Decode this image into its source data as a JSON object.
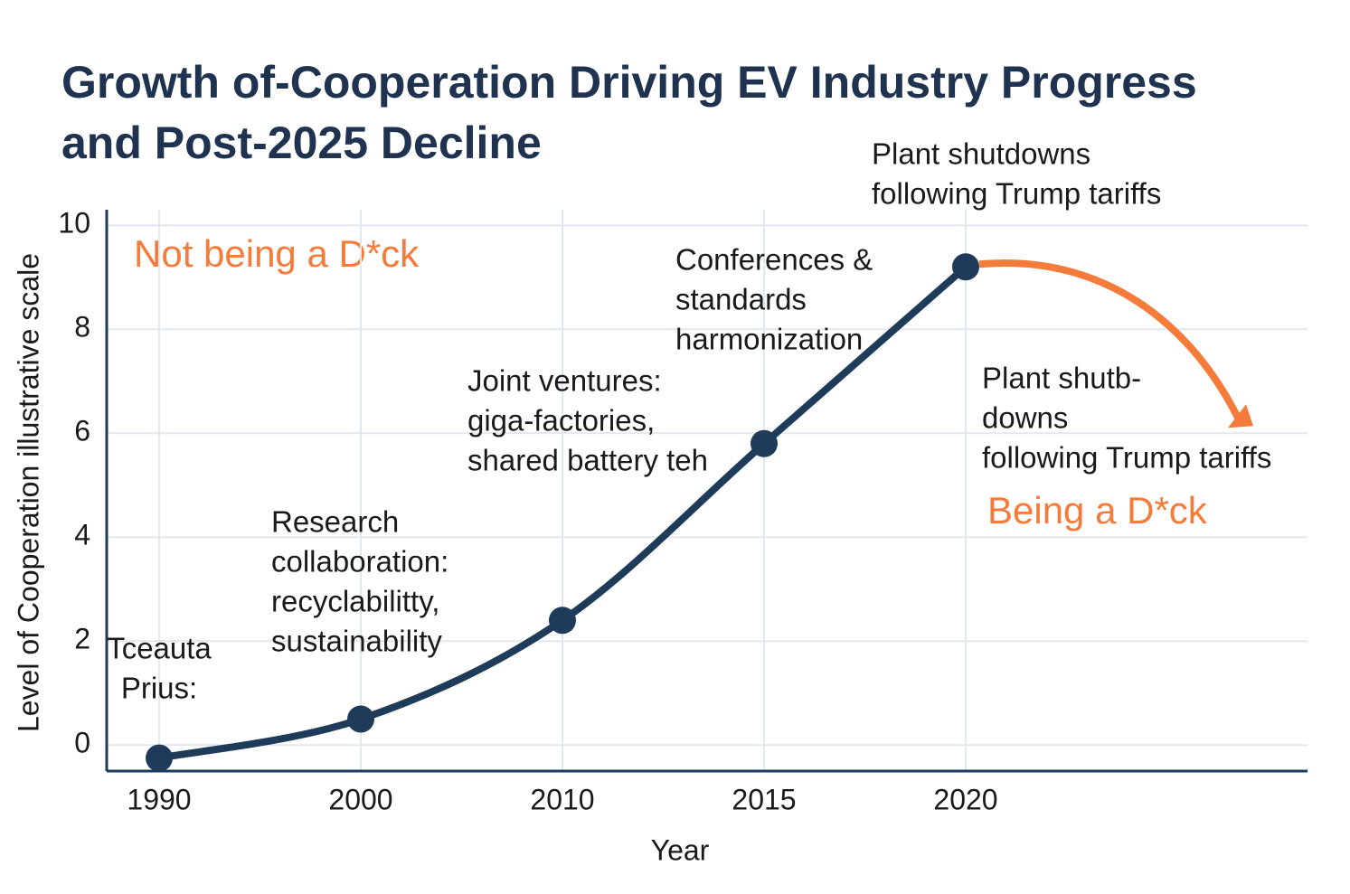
{
  "chart_data": {
    "type": "line",
    "title": [
      "Growth of-Cooperation Driving EV Industry Progress",
      "and Post-2025 Decline"
    ],
    "x_label": "Year",
    "y_label": "Level of Cooperation illustrative scale",
    "categories": [
      "1990",
      "2000",
      "2010",
      "2015",
      "2020"
    ],
    "series": [
      {
        "name": "Cooperation",
        "color": "#1f3b5a",
        "values": [
          -0.25,
          0.5,
          2.4,
          5.8,
          9.2
        ]
      }
    ],
    "decline_color": "#f47b3a",
    "ylim": [
      -0.5,
      10.3
    ],
    "yticks": [
      0,
      2,
      4,
      6,
      8,
      10
    ],
    "grid": true,
    "annotations": [
      {
        "lines": [
          "Tceauta",
          "Prius:"
        ]
      },
      {
        "lines": [
          "Research",
          "collaboration:",
          "recyclabilitty,",
          "sustainability"
        ]
      },
      {
        "lines": [
          "Joint ventures:",
          "giga-factories,",
          "shared battery teh"
        ]
      },
      {
        "lines": [
          "Conferences &",
          "standards",
          "harmonization"
        ]
      },
      {
        "lines": [
          "Plant shutdowns",
          "following Trump tariffs"
        ]
      },
      {
        "lines": [
          "Plant shutb-",
          "downs",
          "following Trump tariffs"
        ]
      }
    ],
    "labels": [
      "Not being a D*ck",
      "Being a D*ck"
    ]
  }
}
